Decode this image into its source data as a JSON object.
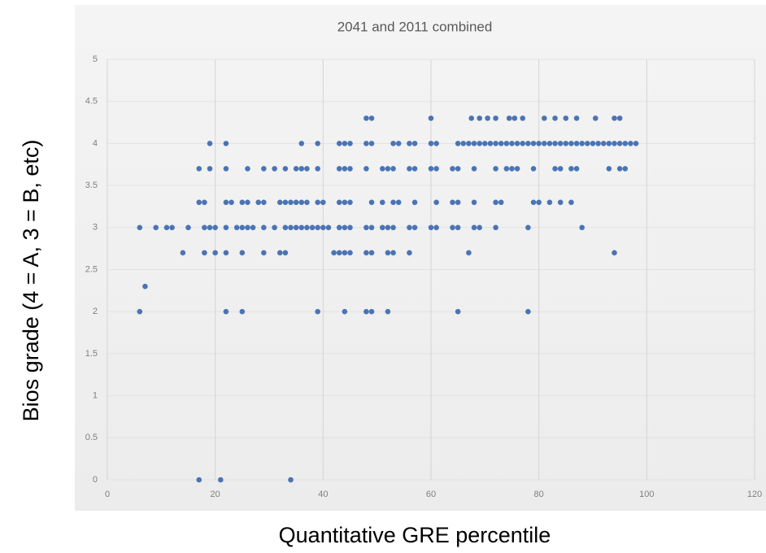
{
  "chart_data": {
    "type": "scatter",
    "title": "2041 and 2011 combined",
    "x_label": "Quantitative GRE percentile",
    "y_label": "Bios grade (4 = A, 3 = B, etc)",
    "color": "#4a74b4",
    "grid": true,
    "xlim": [
      0,
      120
    ],
    "xticks": [
      0,
      20,
      40,
      60,
      80,
      100,
      120
    ],
    "ylim": [
      0,
      5
    ],
    "yticks": [
      0,
      0.5,
      1,
      1.5,
      2,
      2.5,
      3,
      3.5,
      4,
      4.5,
      5
    ],
    "points": [
      [
        48,
        4.3
      ],
      [
        49,
        4.3
      ],
      [
        60,
        4.3
      ],
      [
        67.5,
        4.3
      ],
      [
        69,
        4.3
      ],
      [
        70.5,
        4.3
      ],
      [
        72,
        4.3
      ],
      [
        74.5,
        4.3
      ],
      [
        75.5,
        4.3
      ],
      [
        77,
        4.3
      ],
      [
        81,
        4.3
      ],
      [
        83,
        4.3
      ],
      [
        85,
        4.3
      ],
      [
        87,
        4.3
      ],
      [
        90.5,
        4.3
      ],
      [
        94,
        4.3
      ],
      [
        95,
        4.3
      ],
      [
        19,
        4
      ],
      [
        22,
        4
      ],
      [
        36,
        4
      ],
      [
        39,
        4
      ],
      [
        43,
        4
      ],
      [
        44,
        4
      ],
      [
        45,
        4
      ],
      [
        48,
        4
      ],
      [
        49,
        4
      ],
      [
        53,
        4
      ],
      [
        54,
        4
      ],
      [
        56,
        4
      ],
      [
        57,
        4
      ],
      [
        60,
        4
      ],
      [
        61,
        4
      ],
      [
        65,
        4
      ],
      [
        66,
        4
      ],
      [
        67,
        4
      ],
      [
        68,
        4
      ],
      [
        69,
        4
      ],
      [
        70,
        4
      ],
      [
        71,
        4
      ],
      [
        72,
        4
      ],
      [
        73,
        4
      ],
      [
        74,
        4
      ],
      [
        75,
        4
      ],
      [
        76,
        4
      ],
      [
        77,
        4
      ],
      [
        78,
        4
      ],
      [
        79,
        4
      ],
      [
        80,
        4
      ],
      [
        81,
        4
      ],
      [
        82,
        4
      ],
      [
        83,
        4
      ],
      [
        84,
        4
      ],
      [
        85,
        4
      ],
      [
        86,
        4
      ],
      [
        87,
        4
      ],
      [
        88,
        4
      ],
      [
        89,
        4
      ],
      [
        90,
        4
      ],
      [
        91,
        4
      ],
      [
        92,
        4
      ],
      [
        93,
        4
      ],
      [
        94,
        4
      ],
      [
        95,
        4
      ],
      [
        96,
        4
      ],
      [
        97,
        4
      ],
      [
        98,
        4
      ],
      [
        17,
        3.7
      ],
      [
        19,
        3.7
      ],
      [
        22,
        3.7
      ],
      [
        26,
        3.7
      ],
      [
        29,
        3.7
      ],
      [
        31,
        3.7
      ],
      [
        33,
        3.7
      ],
      [
        35,
        3.7
      ],
      [
        36,
        3.7
      ],
      [
        37,
        3.7
      ],
      [
        39,
        3.7
      ],
      [
        43,
        3.7
      ],
      [
        44,
        3.7
      ],
      [
        45,
        3.7
      ],
      [
        48,
        3.7
      ],
      [
        51,
        3.7
      ],
      [
        52,
        3.7
      ],
      [
        53,
        3.7
      ],
      [
        56,
        3.7
      ],
      [
        57,
        3.7
      ],
      [
        60,
        3.7
      ],
      [
        61,
        3.7
      ],
      [
        64,
        3.7
      ],
      [
        65,
        3.7
      ],
      [
        68,
        3.7
      ],
      [
        72,
        3.7
      ],
      [
        74,
        3.7
      ],
      [
        75,
        3.7
      ],
      [
        76,
        3.7
      ],
      [
        79,
        3.7
      ],
      [
        83,
        3.7
      ],
      [
        84,
        3.7
      ],
      [
        86,
        3.7
      ],
      [
        87,
        3.7
      ],
      [
        93,
        3.7
      ],
      [
        95,
        3.7
      ],
      [
        96,
        3.7
      ],
      [
        17,
        3.3
      ],
      [
        18,
        3.3
      ],
      [
        22,
        3.3
      ],
      [
        23,
        3.3
      ],
      [
        25,
        3.3
      ],
      [
        26,
        3.3
      ],
      [
        28,
        3.3
      ],
      [
        29,
        3.3
      ],
      [
        32,
        3.3
      ],
      [
        33,
        3.3
      ],
      [
        34,
        3.3
      ],
      [
        35,
        3.3
      ],
      [
        36,
        3.3
      ],
      [
        37,
        3.3
      ],
      [
        39,
        3.3
      ],
      [
        40,
        3.3
      ],
      [
        43,
        3.3
      ],
      [
        44,
        3.3
      ],
      [
        45,
        3.3
      ],
      [
        49,
        3.3
      ],
      [
        51,
        3.3
      ],
      [
        53,
        3.3
      ],
      [
        54,
        3.3
      ],
      [
        57,
        3.3
      ],
      [
        61,
        3.3
      ],
      [
        64,
        3.3
      ],
      [
        65,
        3.3
      ],
      [
        68,
        3.3
      ],
      [
        72,
        3.3
      ],
      [
        73,
        3.3
      ],
      [
        79,
        3.3
      ],
      [
        80,
        3.3
      ],
      [
        82,
        3.3
      ],
      [
        84,
        3.3
      ],
      [
        86,
        3.3
      ],
      [
        6,
        3
      ],
      [
        9,
        3
      ],
      [
        11,
        3
      ],
      [
        12,
        3
      ],
      [
        15,
        3
      ],
      [
        18,
        3
      ],
      [
        19,
        3
      ],
      [
        20,
        3
      ],
      [
        22,
        3
      ],
      [
        24,
        3
      ],
      [
        25,
        3
      ],
      [
        26,
        3
      ],
      [
        27,
        3
      ],
      [
        29,
        3
      ],
      [
        31,
        3
      ],
      [
        33,
        3
      ],
      [
        34,
        3
      ],
      [
        35,
        3
      ],
      [
        36,
        3
      ],
      [
        37,
        3
      ],
      [
        38,
        3
      ],
      [
        39,
        3
      ],
      [
        40,
        3
      ],
      [
        41,
        3
      ],
      [
        43,
        3
      ],
      [
        44,
        3
      ],
      [
        45,
        3
      ],
      [
        48,
        3
      ],
      [
        49,
        3
      ],
      [
        51,
        3
      ],
      [
        52,
        3
      ],
      [
        53,
        3
      ],
      [
        56,
        3
      ],
      [
        57,
        3
      ],
      [
        60,
        3
      ],
      [
        61,
        3
      ],
      [
        64,
        3
      ],
      [
        65,
        3
      ],
      [
        68,
        3
      ],
      [
        69,
        3
      ],
      [
        72,
        3
      ],
      [
        78,
        3
      ],
      [
        88,
        3
      ],
      [
        14,
        2.7
      ],
      [
        18,
        2.7
      ],
      [
        20,
        2.7
      ],
      [
        22,
        2.7
      ],
      [
        25,
        2.7
      ],
      [
        29,
        2.7
      ],
      [
        32,
        2.7
      ],
      [
        33,
        2.7
      ],
      [
        42,
        2.7
      ],
      [
        43,
        2.7
      ],
      [
        44,
        2.7
      ],
      [
        45,
        2.7
      ],
      [
        48,
        2.7
      ],
      [
        49,
        2.7
      ],
      [
        52,
        2.7
      ],
      [
        53,
        2.7
      ],
      [
        56,
        2.7
      ],
      [
        67,
        2.7
      ],
      [
        94,
        2.7
      ],
      [
        7,
        2.3
      ],
      [
        6,
        2
      ],
      [
        22,
        2
      ],
      [
        25,
        2
      ],
      [
        39,
        2
      ],
      [
        44,
        2
      ],
      [
        48,
        2
      ],
      [
        49,
        2
      ],
      [
        52,
        2
      ],
      [
        65,
        2
      ],
      [
        78,
        2
      ],
      [
        17,
        0
      ],
      [
        21,
        0
      ],
      [
        34,
        0
      ]
    ]
  }
}
